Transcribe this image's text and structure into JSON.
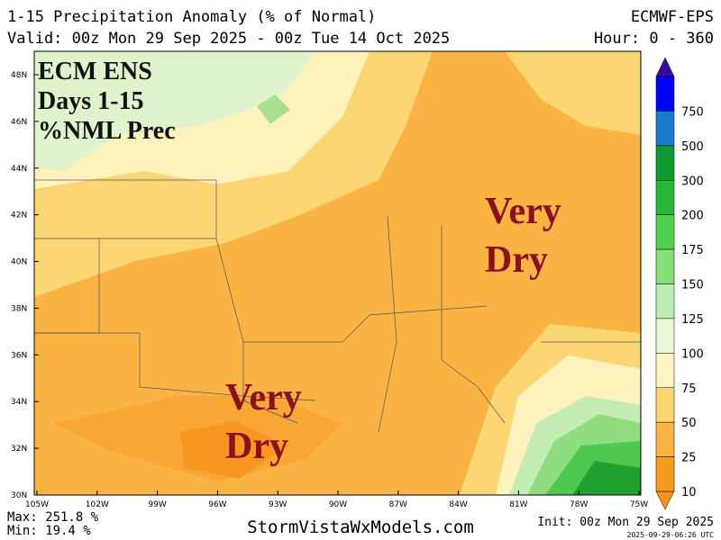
{
  "header": {
    "title": "1-15 Precipitation Anomaly (% of Normal)",
    "model": "ECMWF-EPS",
    "valid": "Valid: 00z Mon 29 Sep 2025 - 00z Tue 14 Oct 2025",
    "hours": "Hour: 0 - 360"
  },
  "map": {
    "overlay_lines": [
      "ECM ENS",
      "Days 1-15",
      "%NML Prec"
    ],
    "annotations": [
      {
        "lines": [
          "Very",
          "Dry"
        ]
      },
      {
        "lines": [
          "Very",
          "Dry"
        ]
      }
    ],
    "lat_labels": [
      "48N",
      "46N",
      "44N",
      "42N",
      "40N",
      "38N",
      "36N",
      "34N",
      "32N",
      "30N"
    ],
    "lon_labels": [
      "105W",
      "102W",
      "99W",
      "96W",
      "93W",
      "90W",
      "87W",
      "84W",
      "81W",
      "78W",
      "75W"
    ]
  },
  "legend": {
    "levels": [
      750,
      500,
      300,
      200,
      175,
      150,
      125,
      100,
      75,
      50,
      25,
      10
    ]
  },
  "footer": {
    "max": "Max: 251.8 %",
    "min": "Min: 19.4 %",
    "site": "StormVistaWxModels.com",
    "init": "Init: 00z Mon 29 Sep 2025",
    "stamp": "2025-09-29-06:26 UTC"
  }
}
